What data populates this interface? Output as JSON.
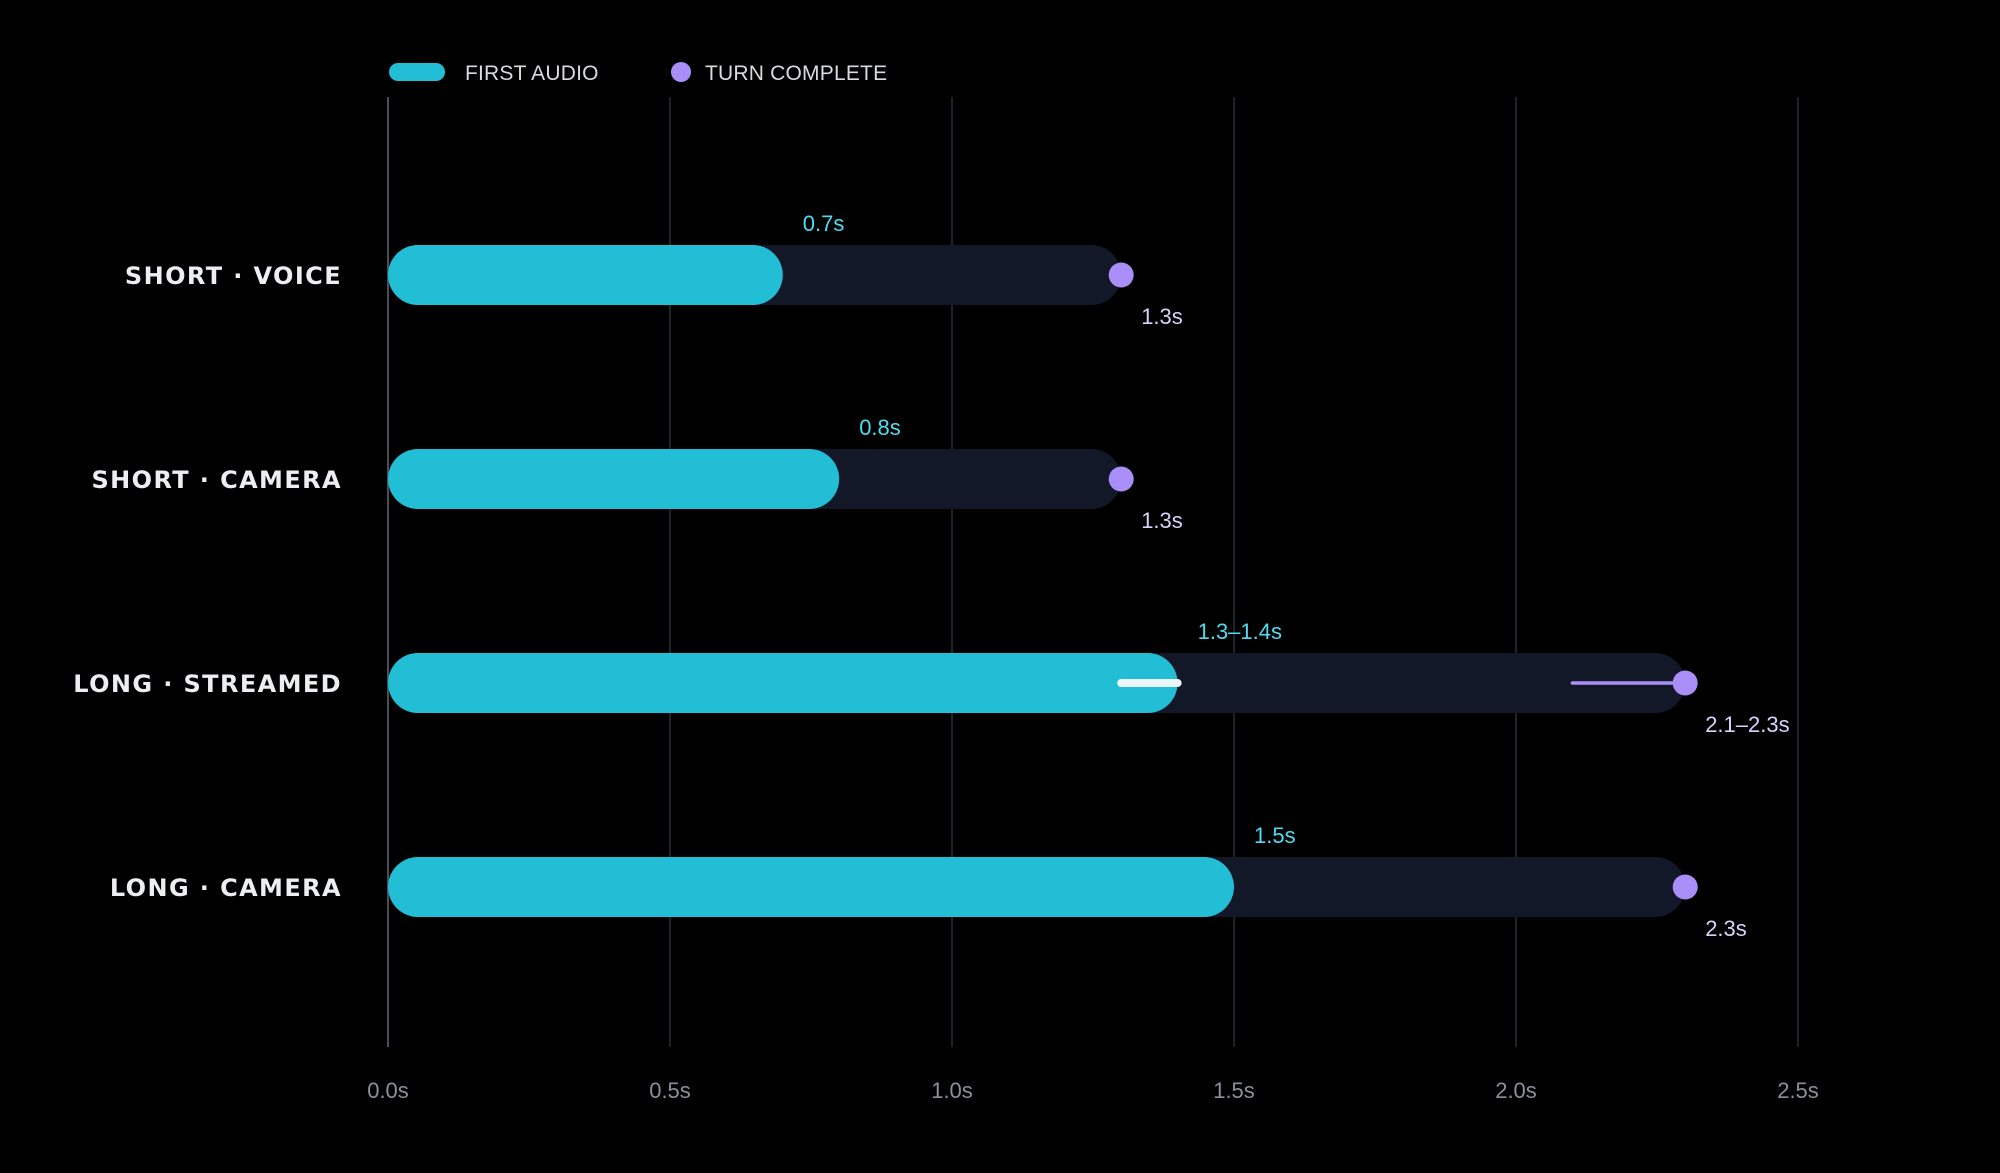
{
  "legend": {
    "first_audio": "FIRST AUDIO",
    "turn_complete": "TURN COMPLETE"
  },
  "colors": {
    "background": "#000000",
    "first_audio": "#22bed6",
    "turn_complete": "#a98ef7",
    "track": "#121827",
    "grid": "#2a3340",
    "baseline": "#5a6270",
    "first_range": "#eaf6f8",
    "first_label": "#4fdcf0",
    "turn_label": "#d9d3fb"
  },
  "chart_data": {
    "type": "bar",
    "orientation": "horizontal",
    "categories": [
      "SHORT · VOICE",
      "SHORT · CAMERA",
      "LONG · STREAMED",
      "LONG · CAMERA"
    ],
    "series": [
      {
        "name": "FIRST AUDIO",
        "values": [
          0.7,
          0.8,
          1.4,
          1.5
        ],
        "ranges": [
          null,
          null,
          [
            1.3,
            1.4
          ],
          null
        ],
        "labels": [
          "0.7s",
          "0.8s",
          "1.3–1.4s",
          "1.5s"
        ]
      },
      {
        "name": "TURN COMPLETE",
        "values": [
          1.3,
          1.3,
          2.3,
          2.3
        ],
        "ranges": [
          null,
          null,
          [
            2.1,
            2.3
          ],
          null
        ],
        "labels": [
          "1.3s",
          "1.3s",
          "2.1–2.3s",
          "2.3s"
        ]
      }
    ],
    "xlim": [
      0,
      2.5
    ],
    "xticks": [
      0,
      0.5,
      1.0,
      1.5,
      2.0,
      2.5
    ],
    "xtick_labels": [
      "0.0s",
      "0.5s",
      "1.0s",
      "1.5s",
      "2.0s",
      "2.5s"
    ],
    "grid": true,
    "legend_position": "top-left",
    "title": "",
    "xlabel": "",
    "ylabel": ""
  }
}
